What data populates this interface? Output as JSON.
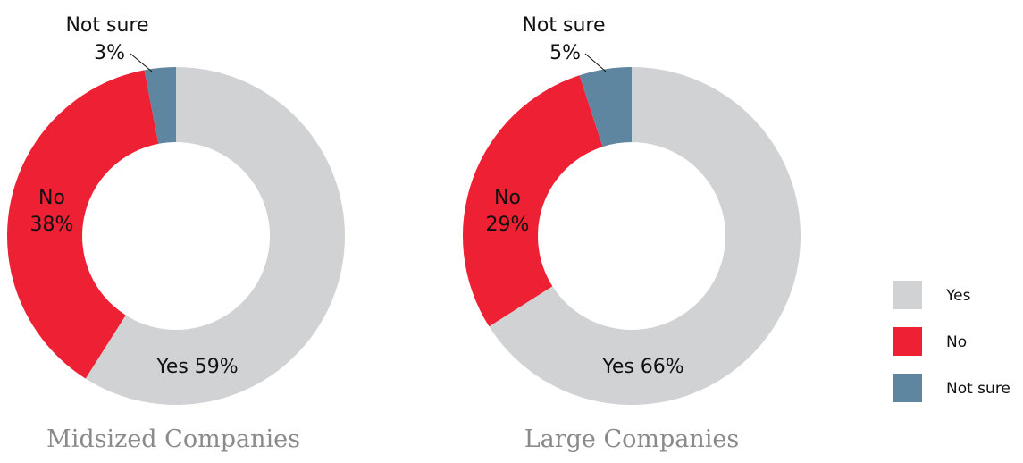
{
  "chart_data": [
    {
      "type": "pie",
      "variant": "donut",
      "title": "Midsized Companies",
      "categories": [
        "Yes",
        "No",
        "Not sure"
      ],
      "values": [
        59,
        38,
        3
      ],
      "labels": {
        "yes_text": "Yes 59%",
        "no_name": "No",
        "no_value": "38%",
        "notsure_name": "Not sure",
        "notsure_value": "3%"
      }
    },
    {
      "type": "pie",
      "variant": "donut",
      "title": "Large Companies",
      "categories": [
        "Yes",
        "No",
        "Not sure"
      ],
      "values": [
        66,
        29,
        5
      ],
      "labels": {
        "yes_text": "Yes 66%",
        "no_name": "No",
        "no_value": "29%",
        "notsure_name": "Not sure",
        "notsure_value": "5%"
      }
    }
  ],
  "legend": {
    "placement": "right",
    "items": [
      {
        "label": "Yes",
        "color": "#d1d2d4"
      },
      {
        "label": "No",
        "color": "#ee2033"
      },
      {
        "label": "Not sure",
        "color": "#5e86a0"
      }
    ]
  },
  "colors": {
    "yes": "#d1d2d4",
    "no": "#ee2033",
    "not_sure": "#5e86a0"
  }
}
